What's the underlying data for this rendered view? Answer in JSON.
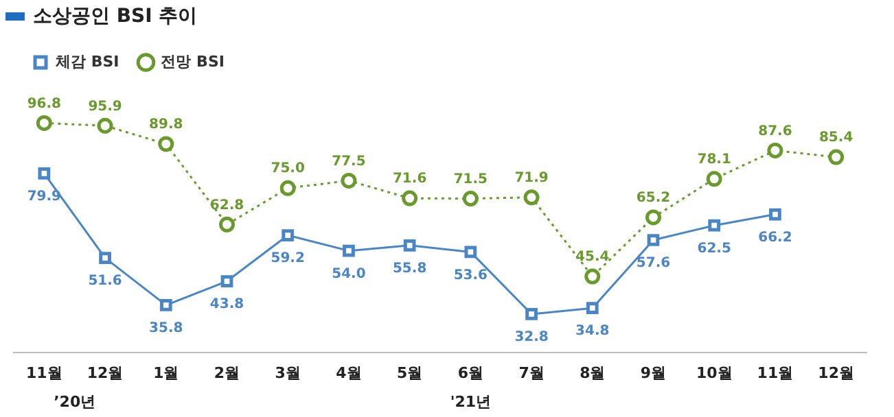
{
  "chart_data": {
    "type": "line",
    "title": "소상공인 BSI 추이",
    "categories": [
      "11월",
      "12월",
      "1월",
      "2월",
      "3월",
      "4월",
      "5월",
      "6월",
      "7월",
      "8월",
      "9월",
      "10월",
      "11월",
      "12월"
    ],
    "series": [
      {
        "name": "체감 BSI",
        "color": "#4a86c5",
        "marker": "square",
        "line_style": "solid",
        "values": [
          79.9,
          51.6,
          35.8,
          43.8,
          59.2,
          54.0,
          55.8,
          53.6,
          32.8,
          34.8,
          57.6,
          62.5,
          66.2,
          null
        ],
        "value_labels": [
          "79.9",
          "51.6",
          "35.8",
          "43.8",
          "59.2",
          "54.0",
          "55.8",
          "53.6",
          "32.8",
          "34.8",
          "57.6",
          "62.5",
          "66.2",
          null
        ]
      },
      {
        "name": "전망 BSI",
        "color": "#6a9a2e",
        "marker": "circle",
        "line_style": "dotted",
        "values": [
          96.8,
          95.9,
          89.8,
          62.8,
          75.0,
          77.5,
          71.6,
          71.5,
          71.9,
          45.4,
          65.2,
          78.1,
          87.6,
          85.4
        ],
        "value_labels": [
          "96.8",
          "95.9",
          "89.8",
          "62.8",
          "75.0",
          "77.5",
          "71.6",
          "71.5",
          "71.9",
          "45.4",
          "65.2",
          "78.1",
          "87.6",
          "85.4"
        ]
      }
    ],
    "annotations": [
      "’20년",
      "'21년"
    ],
    "legend": "top left",
    "grid": false
  }
}
